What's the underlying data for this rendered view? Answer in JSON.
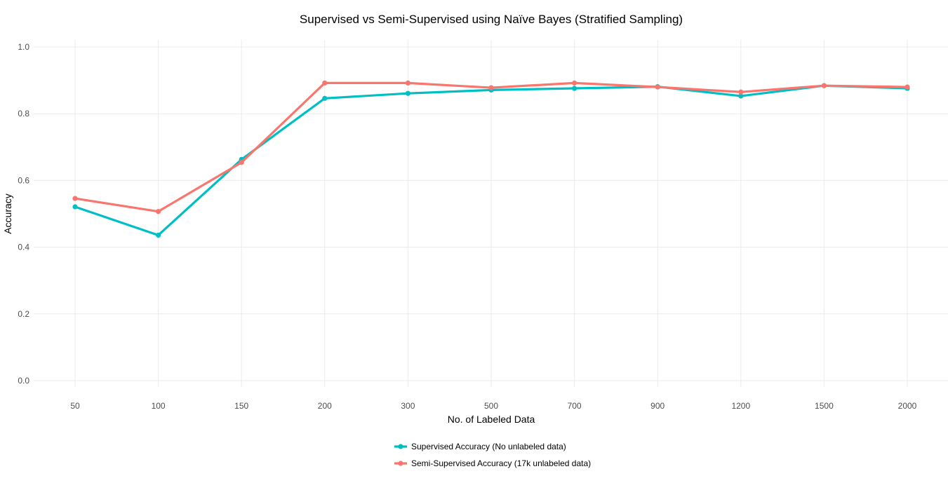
{
  "chart_data": {
    "type": "line",
    "title": "Supervised vs Semi-Supervised using Naïve Bayes (Stratified Sampling)",
    "xlabel": "No. of Labeled Data",
    "ylabel": "Accuracy",
    "categories": [
      "50",
      "100",
      "150",
      "200",
      "300",
      "500",
      "700",
      "900",
      "1200",
      "1500",
      "2000"
    ],
    "ylim": [
      0,
      1.0
    ],
    "yticks": [
      0.0,
      0.2,
      0.4,
      0.6,
      0.8,
      1.0
    ],
    "ytick_labels": [
      "0.0",
      "0.2",
      "0.4",
      "0.6",
      "0.8",
      "1.0"
    ],
    "grid": true,
    "legend_position": "bottom",
    "series": [
      {
        "name": "Supervised Accuracy (No unlabeled data)",
        "color": "#00BFC4",
        "values": [
          0.521,
          0.436,
          0.663,
          0.846,
          0.861,
          0.871,
          0.876,
          0.881,
          0.853,
          0.884,
          0.876
        ]
      },
      {
        "name": "Semi-Supervised Accuracy (17k unlabeled data)",
        "color": "#F8766D",
        "values": [
          0.546,
          0.507,
          0.654,
          0.892,
          0.892,
          0.878,
          0.892,
          0.88,
          0.865,
          0.884,
          0.88
        ]
      }
    ]
  }
}
